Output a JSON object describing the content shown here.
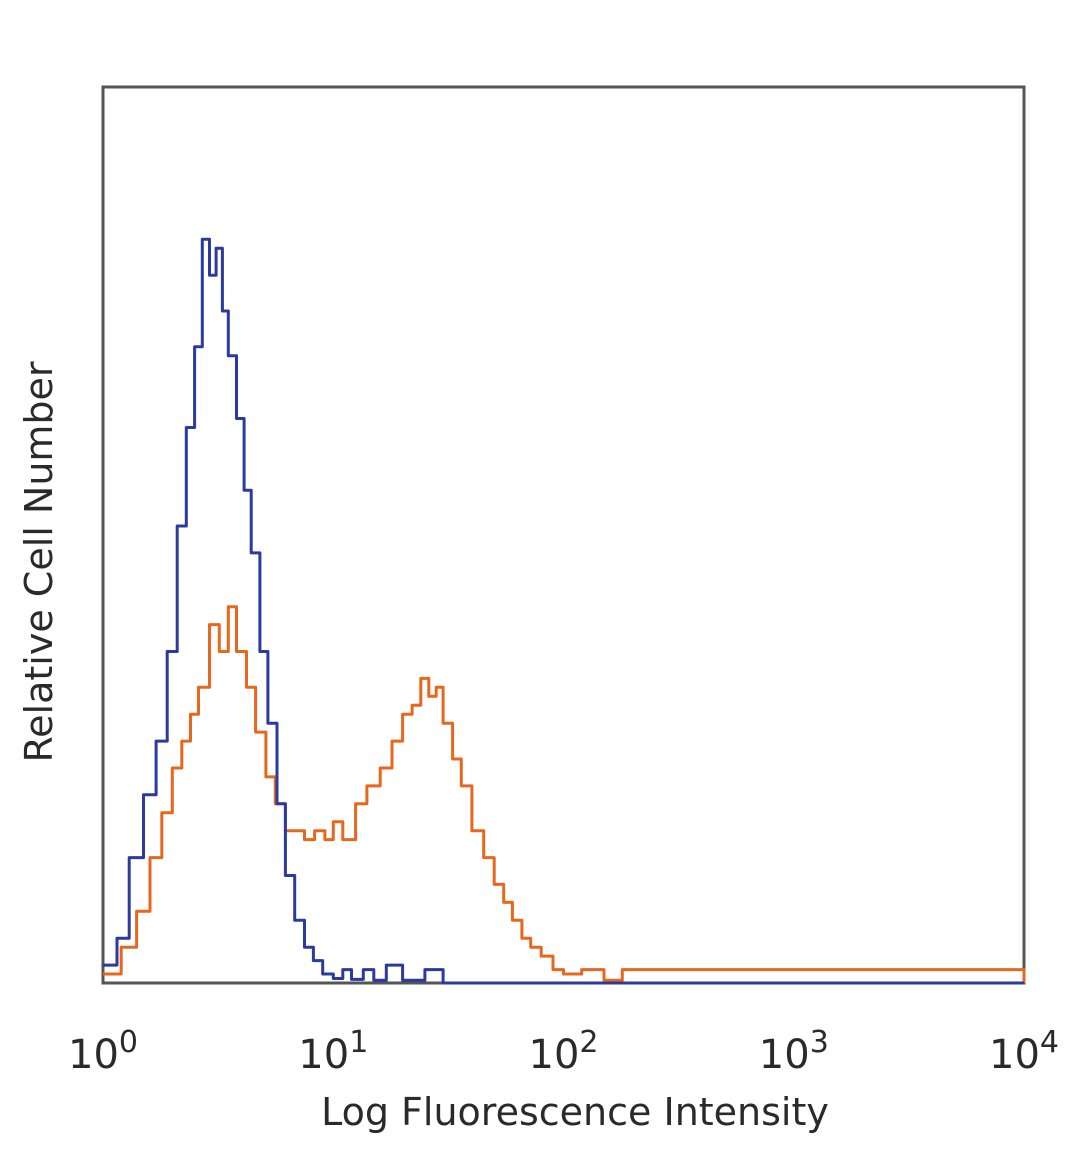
{
  "chart_data": {
    "type": "line",
    "xlabel": "Log Fluorescence Intensity",
    "ylabel": "Relative Cell Number",
    "xscale": "log",
    "xlim": [
      1,
      10000
    ],
    "ylim": [
      0,
      100
    ],
    "x_ticks": [
      {
        "base": "10",
        "exp": "0"
      },
      {
        "base": "10",
        "exp": "1"
      },
      {
        "base": "10",
        "exp": "2"
      },
      {
        "base": "10",
        "exp": "3"
      },
      {
        "base": "10",
        "exp": "4"
      }
    ],
    "grid": false,
    "legend": "none",
    "series": [
      {
        "color": "#2b3a9e",
        "x": [
          1.0,
          1.15,
          1.3,
          1.5,
          1.7,
          1.9,
          2.1,
          2.3,
          2.5,
          2.7,
          2.9,
          3.1,
          3.3,
          3.5,
          3.8,
          4.1,
          4.4,
          4.8,
          5.2,
          5.7,
          6.2,
          6.8,
          7.5,
          8.2,
          9.0,
          10.0,
          11.0,
          12.0,
          13.5,
          15.0,
          17.0,
          20.0,
          25.0,
          30.0,
          10000.0
        ],
        "y": [
          2,
          5,
          14,
          21,
          27,
          37,
          51,
          62,
          71,
          83,
          79,
          82,
          75,
          70,
          63,
          55,
          48,
          37,
          29,
          20,
          12,
          7,
          4,
          2.5,
          1,
          0.5,
          1.5,
          0.4,
          1.5,
          0.3,
          2,
          0.3,
          1.5,
          0,
          0
        ]
      },
      {
        "color": "#e8671e",
        "x": [
          1.0,
          1.2,
          1.4,
          1.6,
          1.8,
          2.0,
          2.2,
          2.4,
          2.6,
          2.9,
          3.2,
          3.5,
          3.8,
          4.2,
          4.6,
          5.1,
          5.6,
          6.2,
          6.8,
          7.5,
          8.3,
          9.2,
          10.0,
          11.0,
          12.5,
          14.0,
          16.0,
          18.0,
          20.0,
          22.0,
          24.0,
          26.0,
          28.0,
          30.0,
          33.0,
          36.0,
          40.0,
          45.0,
          50.0,
          55.0,
          60.0,
          66.0,
          72.0,
          80.0,
          90.0,
          100.0,
          120.0,
          150.0,
          180.0,
          1500.0,
          2000.0,
          2600.0,
          4500.0,
          10000.0
        ],
        "y": [
          1,
          4,
          8,
          14,
          19,
          24,
          27,
          30,
          33,
          40,
          37,
          42,
          37,
          33,
          28,
          23,
          20,
          17,
          17,
          16,
          17,
          16,
          18,
          16,
          20,
          22,
          24,
          27,
          30,
          31,
          34,
          32,
          33,
          29,
          25,
          22,
          17,
          14,
          11,
          9,
          7,
          5,
          4,
          3,
          1.5,
          1,
          1.5,
          0.3,
          1.5,
          1.5,
          1.5,
          1.5,
          1.5,
          0
        ]
      }
    ]
  }
}
